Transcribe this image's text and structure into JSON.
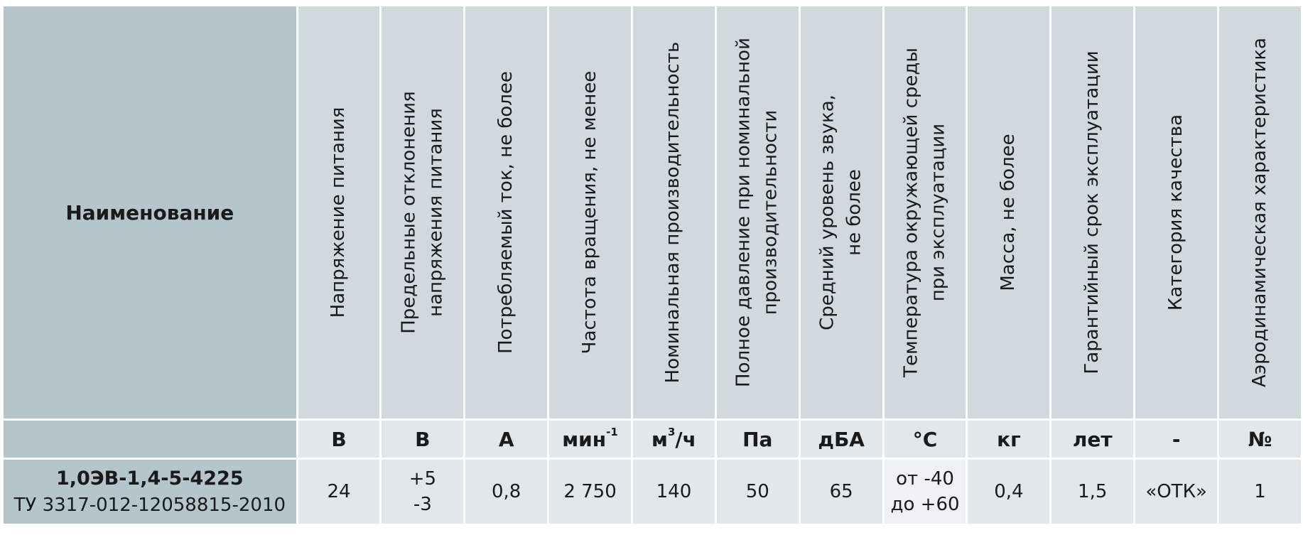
{
  "header": {
    "name_label": "Наименование",
    "columns": [
      {
        "label": "Напряжение  питания",
        "unit": "В"
      },
      {
        "label": "Предельные отклонения\nнапряжения питания",
        "unit": "В"
      },
      {
        "label": "Потребляемый ток, не более",
        "unit": "А"
      },
      {
        "label": "Частота вращения, не менее",
        "unit": "мин",
        "unit_sup": "-1"
      },
      {
        "label": "Номинальная производительность",
        "unit": "м",
        "unit_sup": "3",
        "unit_tail": "/ч"
      },
      {
        "label": "Полное давление при номинальной\nпроизводительности",
        "unit": "Па"
      },
      {
        "label": "Средний уровень звука,\nне более",
        "unit": "дБА"
      },
      {
        "label": "Температура окружающей среды\nпри эксплуатации",
        "unit": "°С"
      },
      {
        "label": "Масса, не более",
        "unit": "кг"
      },
      {
        "label": "Гарантийный срок эксплуатации",
        "unit": "лет"
      },
      {
        "label": "Категория качества",
        "unit": "-"
      },
      {
        "label": "Аэродинамическая характеристика",
        "unit": "№"
      }
    ]
  },
  "row": {
    "model": "1,0ЭВ-1,4-5-4225",
    "spec_code": "ТУ 3317-012-12058815-2010",
    "values": {
      "voltage": "24",
      "dev_plus": "+5",
      "dev_minus": "-3",
      "current": "0,8",
      "rpm": "2 750",
      "flow": "140",
      "pressure": "50",
      "noise": "65",
      "temp_from": "от -40",
      "temp_to": "до +60",
      "mass": "0,4",
      "warranty": "1,5",
      "quality": "«ОТК»",
      "aero": "1"
    }
  }
}
